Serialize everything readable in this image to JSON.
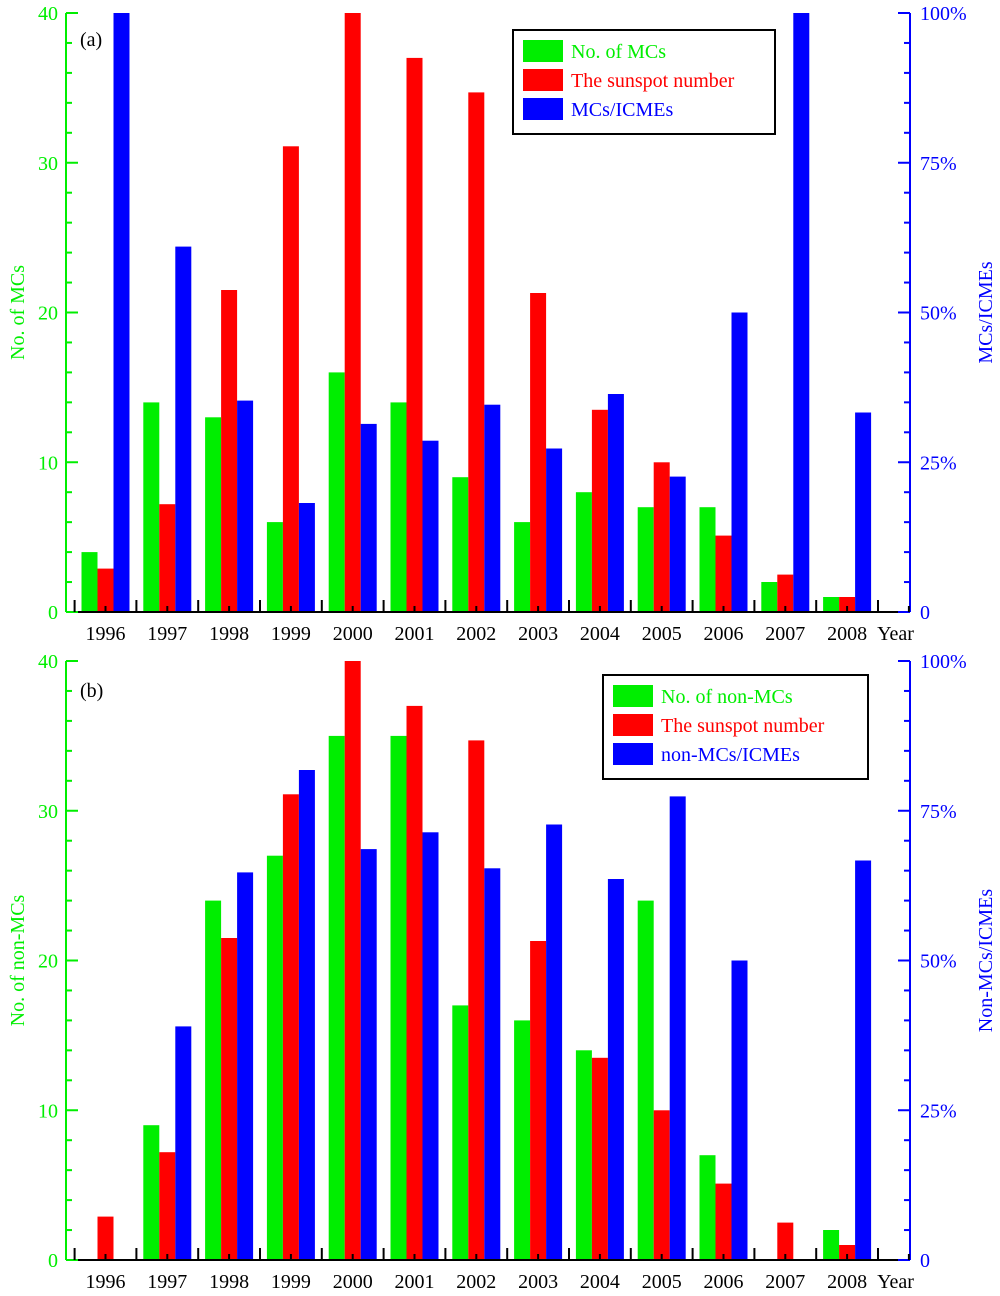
{
  "colors": {
    "green": "#00ee00",
    "red": "#ff0000",
    "blue": "#0000ff",
    "axis": "#000000"
  },
  "chart_data": [
    {
      "type": "bar",
      "panel_label": "(a)",
      "categories": [
        "1996",
        "1997",
        "1998",
        "1999",
        "2000",
        "2001",
        "2002",
        "2003",
        "2004",
        "2005",
        "2006",
        "2007",
        "2008"
      ],
      "x_suffix": "Year",
      "ylabel": "No. of MCs",
      "ylabel_right": "MCs/ICMEs",
      "ylim": [
        0,
        40
      ],
      "ylim_right": [
        0,
        100
      ],
      "yticks_left": [
        "0",
        "10",
        "20",
        "30",
        "40"
      ],
      "yticks_right": [
        "0",
        "25%",
        "50%",
        "75%",
        "100%"
      ],
      "legend_position": "top-right",
      "series": [
        {
          "name": "No. of MCs",
          "axis": "left",
          "color": "#00ee00",
          "values": [
            4,
            14,
            13,
            6,
            16,
            14,
            9,
            6,
            8,
            7,
            7,
            2,
            1
          ]
        },
        {
          "name": "The sunspot number",
          "axis": "left",
          "color": "#ff0000",
          "values": [
            2.9,
            7.2,
            21.5,
            31.1,
            40,
            37,
            34.7,
            21.3,
            13.5,
            10,
            5.1,
            2.5,
            1
          ]
        },
        {
          "name": "MCs/ICMEs",
          "axis": "right",
          "color": "#0000ff",
          "values": [
            100,
            61,
            35.3,
            18.2,
            31.4,
            28.6,
            34.6,
            27.3,
            36.4,
            22.6,
            50,
            100,
            33.3
          ]
        }
      ]
    },
    {
      "type": "bar",
      "panel_label": "(b)",
      "categories": [
        "1996",
        "1997",
        "1998",
        "1999",
        "2000",
        "2001",
        "2002",
        "2003",
        "2004",
        "2005",
        "2006",
        "2007",
        "2008"
      ],
      "x_suffix": "Year",
      "ylabel": "No. of non-MCs",
      "ylabel_right": "Non-MCs/ICMEs",
      "ylim": [
        0,
        40
      ],
      "ylim_right": [
        0,
        100
      ],
      "yticks_left": [
        "0",
        "10",
        "20",
        "30",
        "40"
      ],
      "yticks_right": [
        "0",
        "25%",
        "50%",
        "75%",
        "100%"
      ],
      "legend_position": "top-right",
      "series": [
        {
          "name": "No. of non-MCs",
          "axis": "left",
          "color": "#00ee00",
          "values": [
            0,
            9,
            24,
            27,
            35,
            35,
            17,
            16,
            14,
            24,
            7,
            0,
            2
          ]
        },
        {
          "name": "The sunspot number",
          "axis": "left",
          "color": "#ff0000",
          "values": [
            2.9,
            7.2,
            21.5,
            31.1,
            40,
            37,
            34.7,
            21.3,
            13.5,
            10,
            5.1,
            2.5,
            1
          ]
        },
        {
          "name": "non-MCs/ICMEs",
          "axis": "right",
          "color": "#0000ff",
          "values": [
            0,
            39,
            64.7,
            81.8,
            68.6,
            71.4,
            65.4,
            72.7,
            63.6,
            77.4,
            50,
            0,
            66.7
          ]
        }
      ]
    }
  ]
}
